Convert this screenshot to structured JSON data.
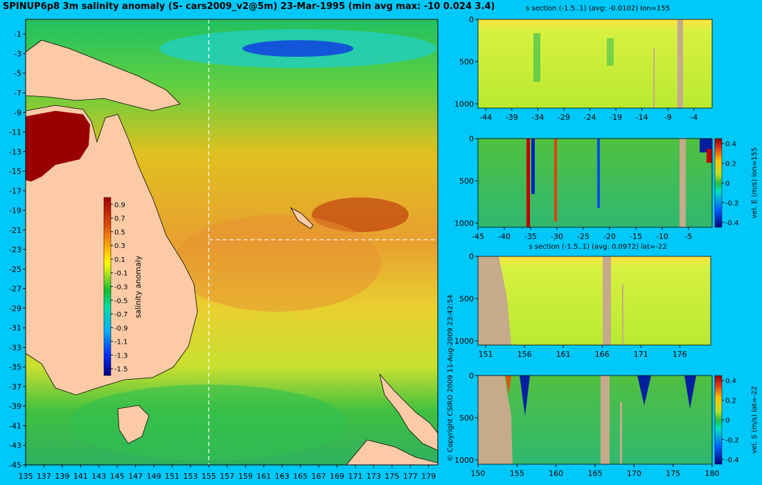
{
  "title": "SPINUP6p8 3m salinity anomaly (S- cars2009_v2@5m) 23-Mar-1995 (min avg max: -10 0.024 3.4)",
  "copyright": "© Copyright CSIRO 2009   11-Aug-2009 23:42:54",
  "colors": {
    "background": "#00c8f8",
    "land": "#fccba6",
    "section_land": "#c6aa8c",
    "crosshair": "#ffffff"
  },
  "chart_data": [
    {
      "id": "map",
      "type": "heatmap",
      "xlabel": "",
      "ylabel": "",
      "x_ticks": [
        135,
        137,
        139,
        141,
        143,
        145,
        147,
        149,
        151,
        153,
        155,
        157,
        159,
        161,
        163,
        165,
        167,
        169,
        171,
        173,
        175,
        177,
        179
      ],
      "y_ticks": [
        -1,
        -3,
        -5,
        -7,
        -9,
        -11,
        -13,
        -15,
        -17,
        -19,
        -21,
        -23,
        -25,
        -27,
        -29,
        -31,
        -33,
        -35,
        -37,
        -39,
        -41,
        -43,
        -45
      ],
      "xlim": [
        135,
        180
      ],
      "ylim": [
        -45,
        0.5
      ],
      "crosshair": {
        "lon": 155,
        "lat": -22
      },
      "colorbar": {
        "label": "salinity anomaly",
        "range": [
          -1.6,
          1.0
        ],
        "ticks": [
          "0.9",
          "0.7",
          "0.5",
          "0.3",
          "0.1",
          "-0.1",
          "-0.3",
          "-0.5",
          "-0.7",
          "-0.9",
          "-1.1",
          "-1.3",
          "-1.5"
        ]
      }
    },
    {
      "id": "s-lon",
      "type": "heatmap",
      "title": "s section (-1.5..1) (avg: -0.0102) lon=155",
      "x_ticks": [
        "-44",
        "-39",
        "-34",
        "-29",
        "-24",
        "-19",
        "-14",
        "-9",
        "-4"
      ],
      "x_values": [
        -44,
        -39,
        -34,
        -29,
        -24,
        -19,
        -14,
        -9,
        -4
      ],
      "xlim": [
        -45.5,
        -0.5
      ],
      "y_ticks": [
        "0",
        "500",
        "1000"
      ],
      "ylim": [
        0,
        1050
      ]
    },
    {
      "id": "v-lon",
      "type": "heatmap",
      "title": "",
      "x_ticks": [
        "-45",
        "-40",
        "-35",
        "-30",
        "-25",
        "-20",
        "-15",
        "-10",
        "-5"
      ],
      "x_values": [
        -45,
        -40,
        -35,
        -30,
        -25,
        -20,
        -15,
        -10,
        -5
      ],
      "xlim": [
        -45,
        -0.5
      ],
      "y_ticks": [
        "0",
        "500",
        "1000"
      ],
      "ylim": [
        0,
        1050
      ],
      "colorbar": {
        "label": "vel. E (m/s) lon=155",
        "range": [
          -0.45,
          0.45
        ],
        "ticks": [
          "0.4",
          "0.2",
          "0",
          "-0.2",
          "-0.4"
        ]
      }
    },
    {
      "id": "s-lat",
      "type": "heatmap",
      "title": "s section (-1.5..1) (avg: 0.0972) lat=-22",
      "x_ticks": [
        "151",
        "156",
        "161",
        "166",
        "171",
        "176"
      ],
      "x_values": [
        151,
        156,
        161,
        166,
        171,
        176
      ],
      "xlim": [
        150,
        180
      ],
      "y_ticks": [
        "0",
        "500",
        "1000"
      ],
      "ylim": [
        0,
        1050
      ]
    },
    {
      "id": "v-lat",
      "type": "heatmap",
      "title": "",
      "x_ticks": [
        "150",
        "155",
        "160",
        "165",
        "170",
        "175",
        "180"
      ],
      "x_values": [
        150,
        155,
        160,
        165,
        170,
        175,
        180
      ],
      "xlim": [
        150,
        180
      ],
      "y_ticks": [
        "0",
        "500",
        "1000"
      ],
      "ylim": [
        0,
        1050
      ],
      "colorbar": {
        "label": "vel. S (m/s) lat=-22",
        "range": [
          -0.45,
          0.45
        ],
        "ticks": [
          "0.4",
          "0.2",
          "0",
          "-0.2",
          "-0.4"
        ]
      }
    }
  ]
}
